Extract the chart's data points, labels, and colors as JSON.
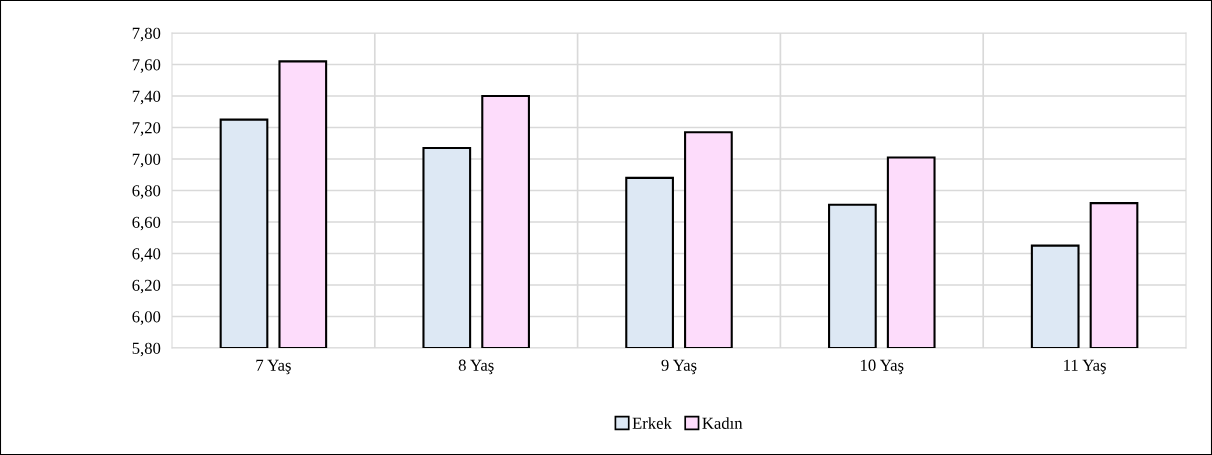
{
  "chart_data": {
    "type": "bar",
    "categories": [
      "7 Yaş",
      "8 Yaş",
      "9 Yaş",
      "10 Yaş",
      "11 Yaş"
    ],
    "series": [
      {
        "name": "Erkek",
        "color": "#dde8f4",
        "values": [
          7.25,
          7.07,
          6.88,
          6.71,
          6.45
        ]
      },
      {
        "name": "Kadın",
        "color": "#fddcfb",
        "values": [
          7.62,
          7.4,
          7.17,
          7.01,
          6.72
        ]
      }
    ],
    "ylim": [
      5.8,
      7.8
    ],
    "yticks": [
      {
        "value": 5.8,
        "label": "5,80"
      },
      {
        "value": 6.0,
        "label": "6,00"
      },
      {
        "value": 6.2,
        "label": "6,20"
      },
      {
        "value": 6.4,
        "label": "6,40"
      },
      {
        "value": 6.6,
        "label": "6,60"
      },
      {
        "value": 6.8,
        "label": "6,80"
      },
      {
        "value": 7.0,
        "label": "7,00"
      },
      {
        "value": 7.2,
        "label": "7,20"
      },
      {
        "value": 7.4,
        "label": "7,40"
      },
      {
        "value": 7.6,
        "label": "7,60"
      },
      {
        "value": 7.8,
        "label": "7,80"
      }
    ],
    "grid": true,
    "legend": "bottom"
  }
}
